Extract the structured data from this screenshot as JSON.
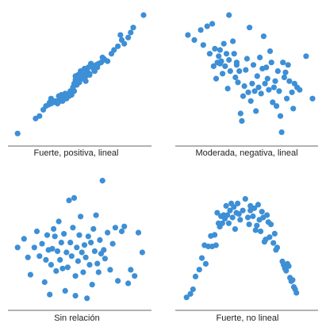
{
  "accent_color": "#3d8fd6",
  "chart_data": [
    {
      "type": "scatter",
      "title": "Fuerte, positiva, lineal",
      "points": [
        [
          0.02,
          0.05
        ],
        [
          0.16,
          0.17
        ],
        [
          0.19,
          0.19
        ],
        [
          0.22,
          0.24
        ],
        [
          0.24,
          0.27
        ],
        [
          0.26,
          0.28
        ],
        [
          0.27,
          0.3
        ],
        [
          0.28,
          0.33
        ],
        [
          0.28,
          0.29
        ],
        [
          0.3,
          0.3
        ],
        [
          0.31,
          0.31
        ],
        [
          0.33,
          0.31
        ],
        [
          0.34,
          0.35
        ],
        [
          0.35,
          0.31
        ],
        [
          0.36,
          0.34
        ],
        [
          0.37,
          0.31
        ],
        [
          0.38,
          0.33
        ],
        [
          0.39,
          0.37
        ],
        [
          0.4,
          0.36
        ],
        [
          0.4,
          0.33
        ],
        [
          0.42,
          0.35
        ],
        [
          0.43,
          0.39
        ],
        [
          0.44,
          0.36
        ],
        [
          0.45,
          0.42
        ],
        [
          0.46,
          0.39
        ],
        [
          0.46,
          0.45
        ],
        [
          0.47,
          0.48
        ],
        [
          0.48,
          0.44
        ],
        [
          0.49,
          0.52
        ],
        [
          0.5,
          0.46
        ],
        [
          0.51,
          0.5
        ],
        [
          0.51,
          0.55
        ],
        [
          0.52,
          0.49
        ],
        [
          0.53,
          0.53
        ],
        [
          0.54,
          0.57
        ],
        [
          0.55,
          0.51
        ],
        [
          0.56,
          0.55
        ],
        [
          0.57,
          0.58
        ],
        [
          0.58,
          0.53
        ],
        [
          0.59,
          0.61
        ],
        [
          0.6,
          0.59
        ],
        [
          0.61,
          0.57
        ],
        [
          0.62,
          0.55
        ],
        [
          0.64,
          0.58
        ],
        [
          0.65,
          0.61
        ],
        [
          0.67,
          0.62
        ],
        [
          0.69,
          0.65
        ],
        [
          0.7,
          0.64
        ],
        [
          0.72,
          0.63
        ],
        [
          0.75,
          0.69
        ],
        [
          0.77,
          0.72
        ],
        [
          0.8,
          0.75
        ],
        [
          0.83,
          0.8
        ],
        [
          0.85,
          0.77
        ],
        [
          0.88,
          0.82
        ],
        [
          0.9,
          0.86
        ],
        [
          0.92,
          0.9
        ],
        [
          0.55,
          0.47
        ],
        [
          0.45,
          0.41
        ],
        [
          0.36,
          0.36
        ],
        [
          0.63,
          0.6
        ],
        [
          0.82,
          0.84
        ],
        [
          0.68,
          0.66
        ],
        [
          0.58,
          0.52
        ],
        [
          0.49,
          0.47
        ],
        [
          0.42,
          0.37
        ],
        [
          0.47,
          0.51
        ],
        [
          0.33,
          0.29
        ],
        [
          1.0,
          1.0
        ]
      ]
    },
    {
      "type": "scatter",
      "title": "Moderada, negativa, lineal",
      "points": [
        [
          0.03,
          0.84
        ],
        [
          0.08,
          0.8
        ],
        [
          0.13,
          0.88
        ],
        [
          0.15,
          0.76
        ],
        [
          0.18,
          0.91
        ],
        [
          0.2,
          0.69
        ],
        [
          0.22,
          0.93
        ],
        [
          0.23,
          0.59
        ],
        [
          0.24,
          0.73
        ],
        [
          0.25,
          0.49
        ],
        [
          0.26,
          0.62
        ],
        [
          0.27,
          0.67
        ],
        [
          0.28,
          0.72
        ],
        [
          0.29,
          0.63
        ],
        [
          0.3,
          0.53
        ],
        [
          0.31,
          0.77
        ],
        [
          0.32,
          0.59
        ],
        [
          0.33,
          0.69
        ],
        [
          0.34,
          0.41
        ],
        [
          0.35,
          0.64
        ],
        [
          0.36,
          0.55
        ],
        [
          0.38,
          0.79
        ],
        [
          0.39,
          0.69
        ],
        [
          0.4,
          0.5
        ],
        [
          0.41,
          0.62
        ],
        [
          0.42,
          0.46
        ],
        [
          0.43,
          0.55
        ],
        [
          0.44,
          0.21
        ],
        [
          0.45,
          0.15
        ],
        [
          0.46,
          0.35
        ],
        [
          0.47,
          0.43
        ],
        [
          0.48,
          0.56
        ],
        [
          0.49,
          0.65
        ],
        [
          0.5,
          0.38
        ],
        [
          0.51,
          0.9
        ],
        [
          0.52,
          0.31
        ],
        [
          0.53,
          0.45
        ],
        [
          0.54,
          0.6
        ],
        [
          0.55,
          0.39
        ],
        [
          0.56,
          0.23
        ],
        [
          0.57,
          0.51
        ],
        [
          0.58,
          0.42
        ],
        [
          0.59,
          0.66
        ],
        [
          0.6,
          0.37
        ],
        [
          0.61,
          0.57
        ],
        [
          0.62,
          0.83
        ],
        [
          0.63,
          0.45
        ],
        [
          0.64,
          0.58
        ],
        [
          0.65,
          0.49
        ],
        [
          0.66,
          0.4
        ],
        [
          0.67,
          0.71
        ],
        [
          0.68,
          0.62
        ],
        [
          0.69,
          0.3
        ],
        [
          0.7,
          0.42
        ],
        [
          0.71,
          0.47
        ],
        [
          0.72,
          0.27
        ],
        [
          0.73,
          0.55
        ],
        [
          0.74,
          0.39
        ],
        [
          0.75,
          0.19
        ],
        [
          0.76,
          0.06
        ],
        [
          0.77,
          0.62
        ],
        [
          0.78,
          0.5
        ],
        [
          0.79,
          0.54
        ],
        [
          0.8,
          0.33
        ],
        [
          0.81,
          0.6
        ],
        [
          0.82,
          0.47
        ],
        [
          0.84,
          0.38
        ],
        [
          0.85,
          0.25
        ],
        [
          0.86,
          0.45
        ],
        [
          0.88,
          0.42
        ],
        [
          0.9,
          0.4
        ],
        [
          0.95,
          0.67
        ],
        [
          1.0,
          0.33
        ],
        [
          0.35,
          1.0
        ],
        [
          0.28,
          0.61
        ],
        [
          0.41,
          0.6
        ]
      ]
    },
    {
      "type": "scatter",
      "title": "Sin relación",
      "points": [
        [
          0.02,
          0.45
        ],
        [
          0.1,
          0.37
        ],
        [
          0.12,
          0.23
        ],
        [
          0.15,
          0.45
        ],
        [
          0.17,
          0.58
        ],
        [
          0.19,
          0.38
        ],
        [
          0.21,
          0.48
        ],
        [
          0.23,
          0.17
        ],
        [
          0.24,
          0.35
        ],
        [
          0.25,
          0.55
        ],
        [
          0.26,
          0.43
        ],
        [
          0.28,
          0.31
        ],
        [
          0.29,
          0.44
        ],
        [
          0.3,
          0.6
        ],
        [
          0.31,
          0.54
        ],
        [
          0.32,
          0.26
        ],
        [
          0.33,
          0.42
        ],
        [
          0.34,
          0.66
        ],
        [
          0.35,
          0.35
        ],
        [
          0.36,
          0.49
        ],
        [
          0.37,
          0.28
        ],
        [
          0.38,
          0.56
        ],
        [
          0.39,
          0.1
        ],
        [
          0.4,
          0.41
        ],
        [
          0.41,
          0.29
        ],
        [
          0.42,
          0.83
        ],
        [
          0.43,
          0.49
        ],
        [
          0.44,
          0.38
        ],
        [
          0.45,
          0.61
        ],
        [
          0.46,
          0.85
        ],
        [
          0.47,
          0.22
        ],
        [
          0.48,
          0.45
        ],
        [
          0.49,
          0.34
        ],
        [
          0.5,
          0.55
        ],
        [
          0.51,
          0.7
        ],
        [
          0.52,
          0.41
        ],
        [
          0.53,
          0.25
        ],
        [
          0.54,
          0.47
        ],
        [
          0.55,
          0.37
        ],
        [
          0.56,
          0.04
        ],
        [
          0.57,
          0.54
        ],
        [
          0.58,
          0.31
        ],
        [
          0.59,
          0.49
        ],
        [
          0.6,
          0.15
        ],
        [
          0.61,
          0.6
        ],
        [
          0.62,
          0.42
        ],
        [
          0.63,
          0.71
        ],
        [
          0.64,
          0.32
        ],
        [
          0.65,
          0.25
        ],
        [
          0.66,
          0.51
        ],
        [
          0.67,
          0.4
        ],
        [
          0.68,
          0.99
        ],
        [
          0.69,
          0.43
        ],
        [
          0.7,
          0.36
        ],
        [
          0.72,
          0.57
        ],
        [
          0.74,
          0.27
        ],
        [
          0.76,
          0.48
        ],
        [
          0.78,
          0.61
        ],
        [
          0.8,
          0.18
        ],
        [
          0.83,
          0.58
        ],
        [
          0.85,
          0.62
        ],
        [
          0.88,
          0.16
        ],
        [
          0.9,
          0.27
        ],
        [
          0.93,
          0.22
        ],
        [
          0.96,
          0.57
        ],
        [
          0.99,
          0.41
        ],
        [
          0.07,
          0.52
        ],
        [
          0.27,
          0.07
        ],
        [
          0.47,
          0.06
        ]
      ]
    },
    {
      "type": "scatter",
      "title": "Fuerte, no lineal",
      "points": [
        [
          0.02,
          0.05
        ],
        [
          0.05,
          0.08
        ],
        [
          0.07,
          0.12
        ],
        [
          0.09,
          0.23
        ],
        [
          0.12,
          0.29
        ],
        [
          0.14,
          0.39
        ],
        [
          0.16,
          0.5
        ],
        [
          0.17,
          0.34
        ],
        [
          0.19,
          0.49
        ],
        [
          0.21,
          0.58
        ],
        [
          0.22,
          0.49
        ],
        [
          0.24,
          0.59
        ],
        [
          0.25,
          0.5
        ],
        [
          0.26,
          0.78
        ],
        [
          0.27,
          0.69
        ],
        [
          0.28,
          0.66
        ],
        [
          0.29,
          0.75
        ],
        [
          0.3,
          0.69
        ],
        [
          0.31,
          0.76
        ],
        [
          0.32,
          0.73
        ],
        [
          0.33,
          0.84
        ],
        [
          0.34,
          0.76
        ],
        [
          0.35,
          0.69
        ],
        [
          0.36,
          0.8
        ],
        [
          0.37,
          0.86
        ],
        [
          0.38,
          0.74
        ],
        [
          0.39,
          0.83
        ],
        [
          0.4,
          0.64
        ],
        [
          0.41,
          0.78
        ],
        [
          0.42,
          0.86
        ],
        [
          0.43,
          0.77
        ],
        [
          0.44,
          0.72
        ],
        [
          0.46,
          0.8
        ],
        [
          0.48,
          0.9
        ],
        [
          0.5,
          0.74
        ],
        [
          0.51,
          0.68
        ],
        [
          0.52,
          0.8
        ],
        [
          0.54,
          0.75
        ],
        [
          0.55,
          0.82
        ],
        [
          0.57,
          0.67
        ],
        [
          0.58,
          0.85
        ],
        [
          0.59,
          0.72
        ],
        [
          0.6,
          0.62
        ],
        [
          0.61,
          0.79
        ],
        [
          0.62,
          0.74
        ],
        [
          0.63,
          0.53
        ],
        [
          0.64,
          0.55
        ],
        [
          0.65,
          0.76
        ],
        [
          0.66,
          0.7
        ],
        [
          0.67,
          0.57
        ],
        [
          0.68,
          0.68
        ],
        [
          0.7,
          0.52
        ],
        [
          0.71,
          0.6
        ],
        [
          0.72,
          0.46
        ],
        [
          0.73,
          0.48
        ],
        [
          0.77,
          0.36
        ],
        [
          0.78,
          0.33
        ],
        [
          0.79,
          0.3
        ],
        [
          0.8,
          0.28
        ],
        [
          0.81,
          0.34
        ],
        [
          0.82,
          0.32
        ],
        [
          0.83,
          0.22
        ],
        [
          0.84,
          0.19
        ],
        [
          0.85,
          0.2
        ],
        [
          0.86,
          0.14
        ],
        [
          0.87,
          0.12
        ],
        [
          0.88,
          0.09
        ],
        [
          0.56,
          0.63
        ],
        [
          0.52,
          0.84
        ]
      ]
    }
  ]
}
